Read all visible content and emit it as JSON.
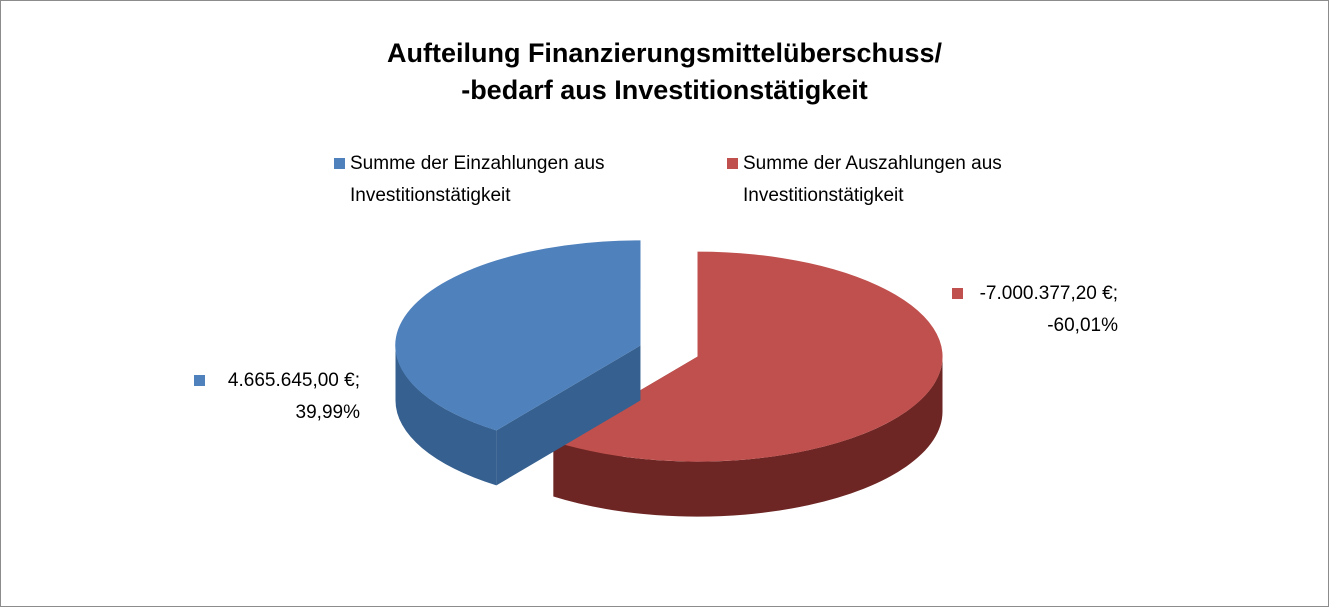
{
  "chart_data": {
    "type": "pie",
    "title": "Aufteilung Finanzierungsmittelüberschuss/\n-bedarf aus Investitionstätigkeit",
    "series": [
      {
        "name": "Summe der Einzahlungen aus Investitionstätigkeit",
        "color": "#4f81bd",
        "side_color": "#36608f",
        "values": [
          4665645.0
        ],
        "value_labels": [
          "4.665.645,00 €; 39,99%"
        ]
      },
      {
        "name": "Summe der Auszahlungen aus Investitionstätigkeit",
        "color": "#c0504d",
        "side_color": "#6e2624",
        "values": [
          -7000377.2
        ],
        "value_labels": [
          "-7.000.377,20 €; -60,01%"
        ]
      }
    ],
    "legend": "top"
  }
}
